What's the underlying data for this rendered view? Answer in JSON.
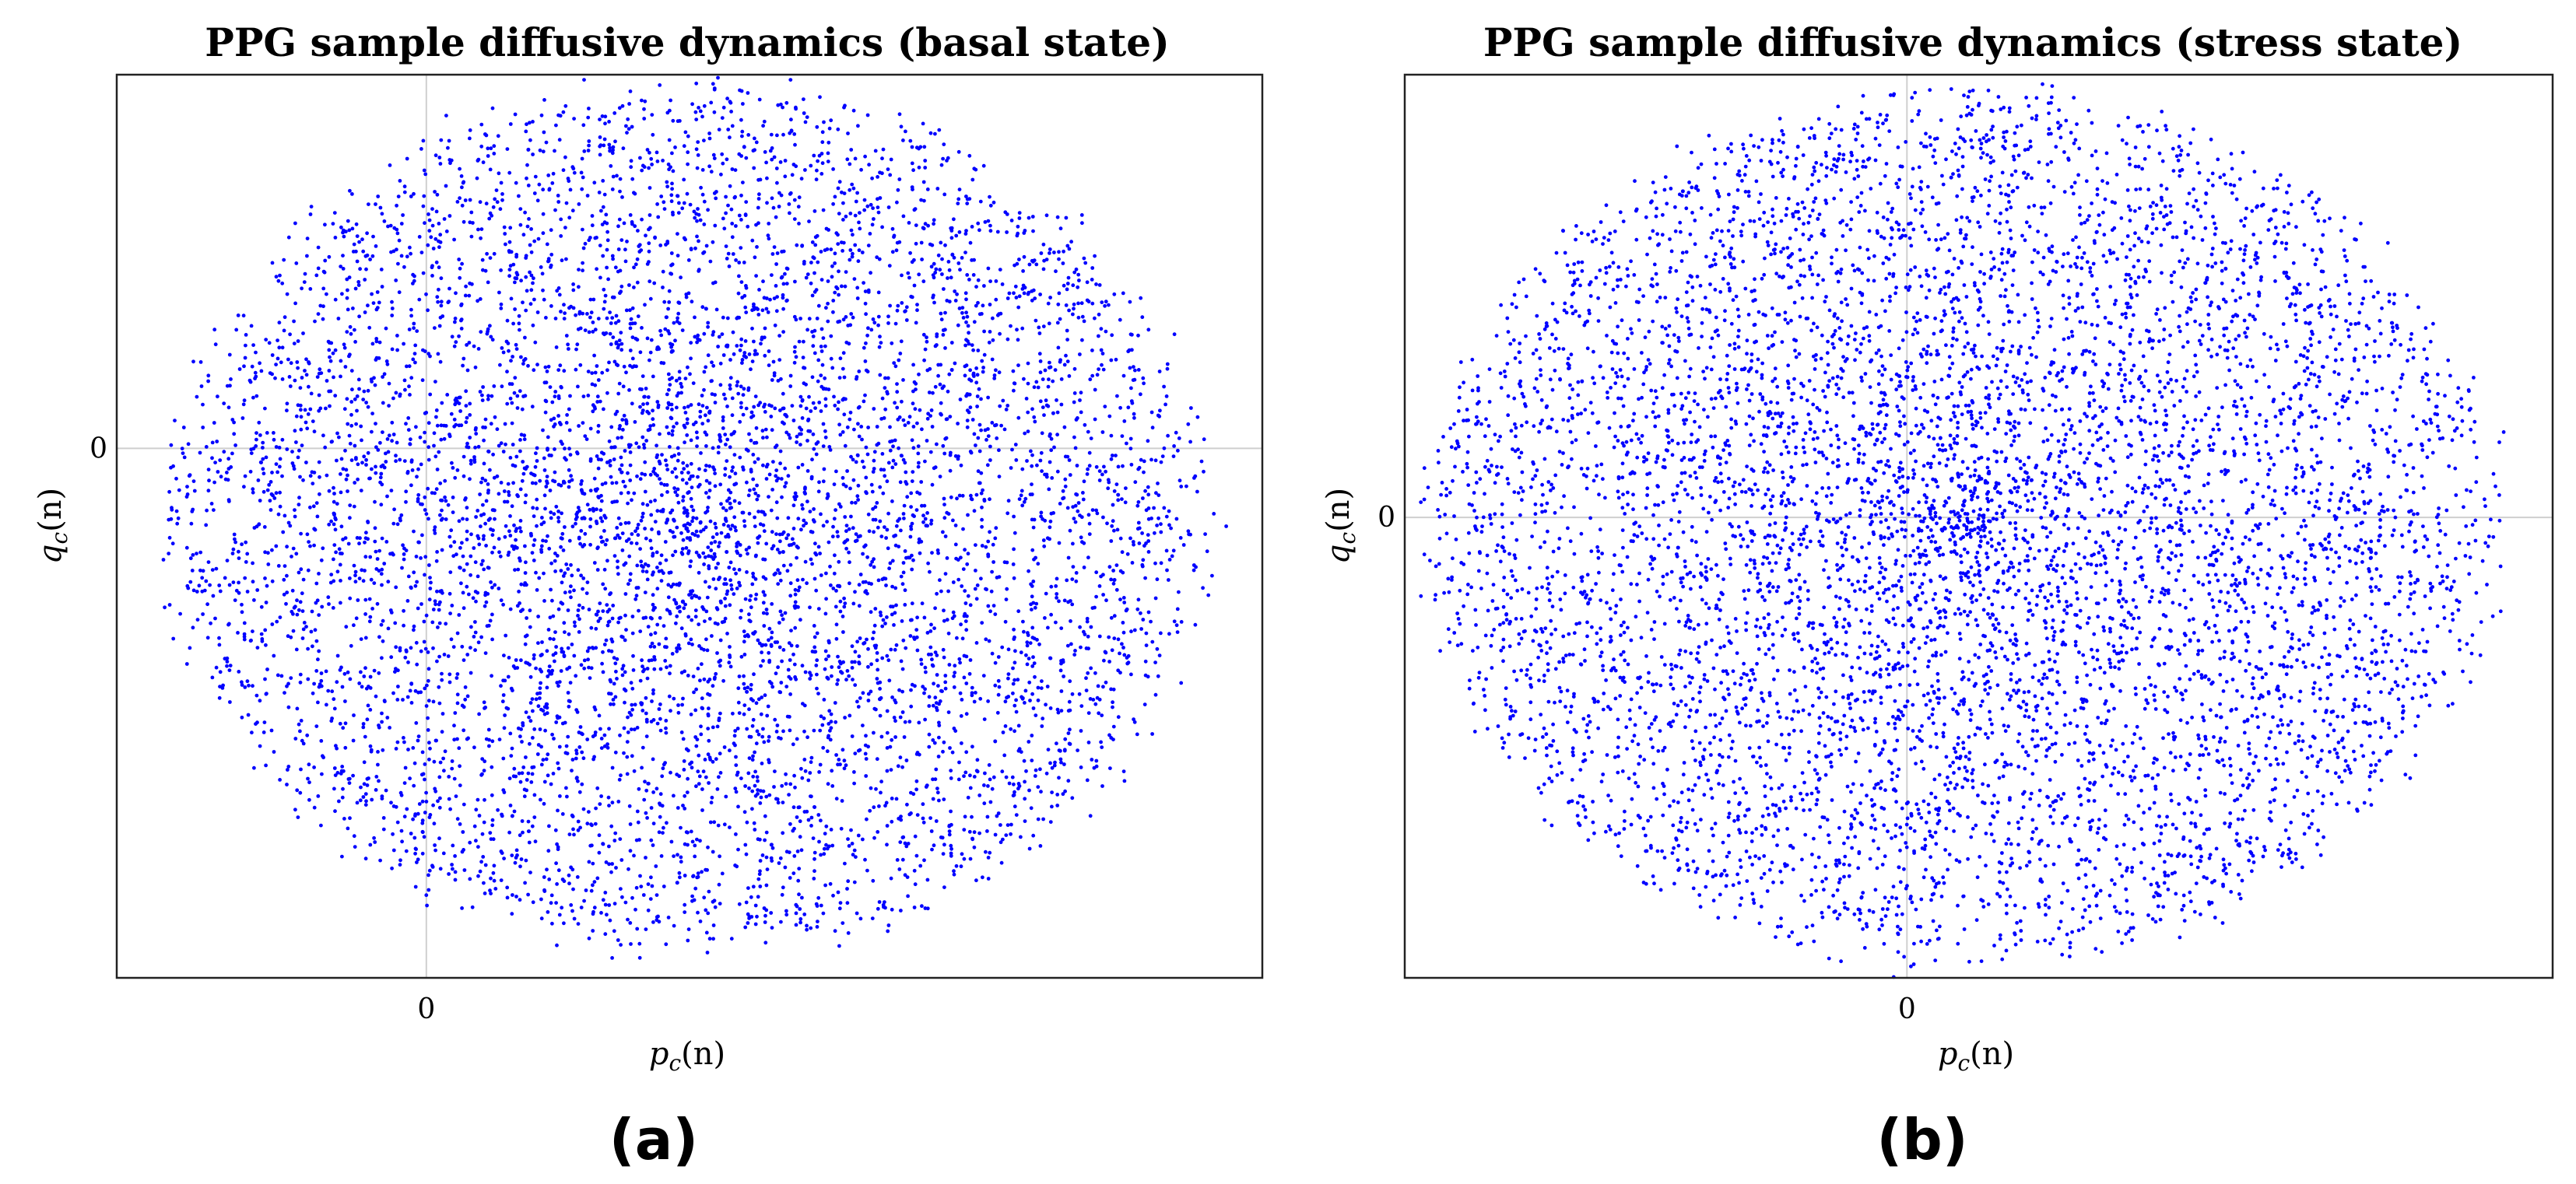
{
  "chart_data": [
    {
      "type": "scatter",
      "panel_label": "(a)",
      "title": "PPG sample diffusive dynamics (basal state)",
      "xlabel": "p_c(n)",
      "xlabel_main": "p",
      "xlabel_sub": "c",
      "xlabel_arg": "(n)",
      "ylabel": "q_c(n)",
      "ylabel_main": "q",
      "ylabel_sub": "c",
      "ylabel_arg": "(n)",
      "xlim": [
        -1.0,
        2.7
      ],
      "ylim": [
        -1.7,
        1.2
      ],
      "x_ticks": [
        {
          "value": 0,
          "label": "0"
        }
      ],
      "y_ticks": [
        {
          "value": 0,
          "label": "0"
        }
      ],
      "grid": "lines at x=0 and y=0",
      "marker_color": "#0000ff",
      "series": [
        {
          "pattern": "diffusive spiral cloud",
          "center": [
            0.85,
            -0.22
          ],
          "radius_range": [
            0.0,
            1.75
          ],
          "x_scale": 1.0,
          "y_scale": 0.83,
          "points_approx": 7000
        }
      ]
    },
    {
      "type": "scatter",
      "panel_label": "(b)",
      "title": "PPG sample diffusive dynamics (stress state)",
      "xlabel": "p_c(n)",
      "xlabel_main": "p",
      "xlabel_sub": "c",
      "xlabel_arg": "(n)",
      "ylabel": "q_c(n)",
      "ylabel_main": "q",
      "ylabel_sub": "c",
      "ylabel_arg": "(n)",
      "xlim": [
        -1.4,
        1.8
      ],
      "ylim": [
        -1.3,
        1.25
      ],
      "x_ticks": [
        {
          "value": 0,
          "label": "0"
        }
      ],
      "y_ticks": [
        {
          "value": 0,
          "label": "0"
        }
      ],
      "grid": "lines at x=0 and y=0",
      "marker_color": "#0000ff",
      "series": [
        {
          "pattern": "diffusive spiral cloud",
          "center": [
            0.15,
            -0.03
          ],
          "radius_range": [
            0.0,
            1.55
          ],
          "x_scale": 1.0,
          "y_scale": 0.83,
          "points_approx": 7000
        }
      ]
    }
  ]
}
